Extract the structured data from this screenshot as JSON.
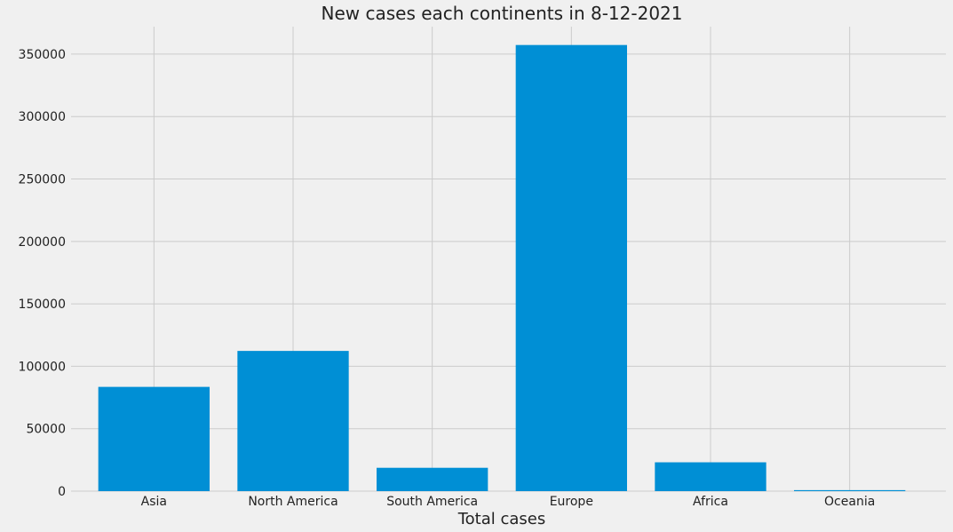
{
  "chart_data": {
    "type": "bar",
    "title": "New cases each continents in 8-12-2021",
    "xlabel": "Total cases",
    "ylabel": "",
    "categories": [
      "Asia",
      "North America",
      "South America",
      "Europe",
      "Africa",
      "Oceania"
    ],
    "values": [
      83500,
      112300,
      18700,
      357300,
      23100,
      800
    ],
    "ylim": [
      0,
      372000
    ],
    "yticks": [
      0,
      50000,
      100000,
      150000,
      200000,
      250000,
      300000,
      350000
    ],
    "ytick_labels": [
      "0",
      "50000",
      "100000",
      "150000",
      "200000",
      "250000",
      "300000",
      "350000"
    ],
    "grid": true,
    "bar_color": "#008fd5",
    "background_color": "#f0f0f0",
    "grid_color": "#cbcbcb"
  }
}
